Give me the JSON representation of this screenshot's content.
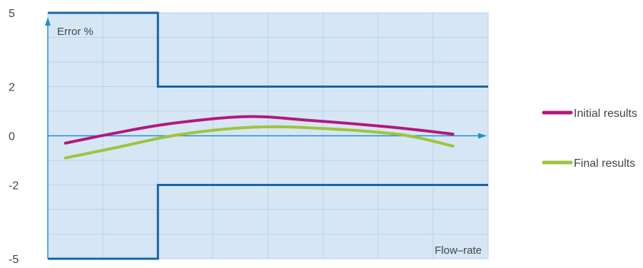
{
  "chart_data": {
    "type": "line",
    "xlabel": "Flow–rate",
    "ylabel": "Error %",
    "ylim": [
      -5,
      5
    ],
    "yticks": [
      {
        "value": 5,
        "label": "5"
      },
      {
        "value": 2,
        "label": "2"
      },
      {
        "value": 0,
        "label": "0"
      },
      {
        "value": -2,
        "label": "-2"
      },
      {
        "value": -5,
        "label": "-5"
      }
    ],
    "grid": true,
    "legend_position": "right",
    "plot_background": "#d6e6f5",
    "grid_color": "#b5d3ee",
    "axis_color": "#1e8fd6",
    "limit_color": "#1565a8",
    "limit_envelope": {
      "breakpoint": 0.25,
      "low_flow": [
        -5,
        5
      ],
      "high_flow": [
        -2,
        2
      ]
    },
    "series": [
      {
        "name": "Initial results",
        "color": "#b5177d",
        "points": [
          {
            "x": 0.04,
            "y": -0.3
          },
          {
            "x": 0.15,
            "y": 0.1
          },
          {
            "x": 0.28,
            "y": 0.5
          },
          {
            "x": 0.45,
            "y": 0.78
          },
          {
            "x": 0.6,
            "y": 0.62
          },
          {
            "x": 0.78,
            "y": 0.35
          },
          {
            "x": 0.92,
            "y": 0.07
          }
        ]
      },
      {
        "name": "Final results",
        "color": "#9fc43a",
        "points": [
          {
            "x": 0.04,
            "y": -0.9
          },
          {
            "x": 0.15,
            "y": -0.5
          },
          {
            "x": 0.3,
            "y": 0.05
          },
          {
            "x": 0.47,
            "y": 0.35
          },
          {
            "x": 0.62,
            "y": 0.3
          },
          {
            "x": 0.8,
            "y": 0.05
          },
          {
            "x": 0.92,
            "y": -0.42
          }
        ]
      }
    ]
  }
}
